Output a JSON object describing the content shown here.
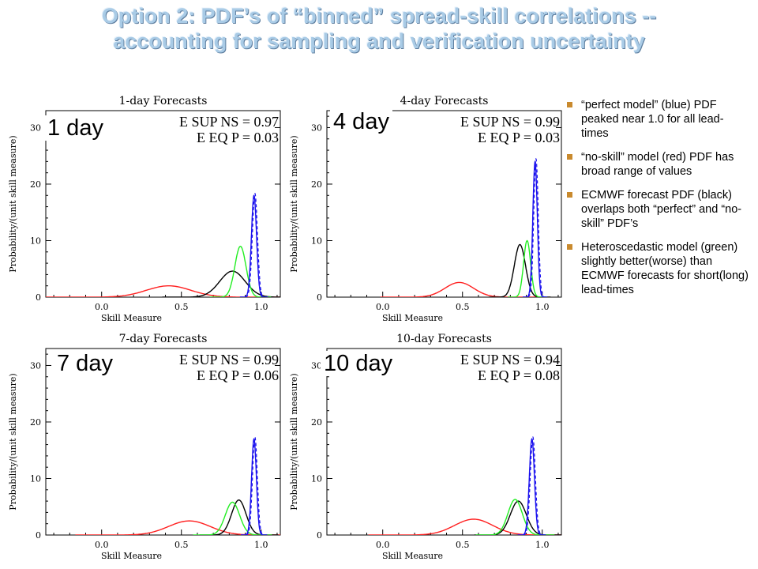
{
  "title": {
    "line1": "Option 2: PDF’s of “binned” spread-skill correlations --",
    "line2": "accounting for sampling and verification uncertainty"
  },
  "bullets": [
    "“perfect model” (blue) PDF peaked near 1.0 for all lead-times",
    "“no-skill” model (red) PDF has broad range of values",
    "ECMWF forecast PDF (black) overlaps both “perfect” and “no-skill” PDF’s",
    "Heteroscedastic model (green) slightly better(worse) than ECMWF forecasts for short(long) lead-times"
  ],
  "series_colors": {
    "red": "#ff2020",
    "black": "#000000",
    "green": "#22ee22",
    "blue": "#1a10ee"
  },
  "chart_data": [
    {
      "type": "line",
      "title": "1-day Forecasts",
      "day_label": "1 day",
      "xlabel": "Skill Measure",
      "ylabel": "Probability/(unit skill measure)",
      "xlim": [
        -0.35,
        1.12
      ],
      "ylim": [
        0,
        33
      ],
      "xticks": [
        "0.0",
        "0.5",
        "1.0"
      ],
      "yticks": [
        "0",
        "10",
        "20",
        "30"
      ],
      "stat_lines": [
        "E SUP NS = 0.97",
        "E EQ P = 0.03"
      ],
      "curves": [
        {
          "color": "red",
          "peak_x": 0.42,
          "peak_y": 2.0,
          "width": 0.14
        },
        {
          "color": "black",
          "peak_x": 0.82,
          "peak_y": 4.6,
          "width": 0.08
        },
        {
          "color": "green",
          "peak_x": 0.87,
          "peak_y": 9.0,
          "width": 0.035
        },
        {
          "color": "blue",
          "peak_x": 0.955,
          "peak_y": 18.0,
          "width": 0.016
        }
      ]
    },
    {
      "type": "line",
      "title": "4-day Forecasts",
      "day_label": "4 day",
      "xlabel": "Skill Measure",
      "ylabel": "Probability/(unit skill measure)",
      "xlim": [
        -0.35,
        1.12
      ],
      "ylim": [
        0,
        33
      ],
      "xticks": [
        "0.0",
        "0.5",
        "1.0"
      ],
      "yticks": [
        "0",
        "10",
        "20",
        "30"
      ],
      "stat_lines": [
        "E SUP NS = 0.99",
        "E EQ P = 0.03"
      ],
      "curves": [
        {
          "color": "red",
          "peak_x": 0.48,
          "peak_y": 2.6,
          "width": 0.09
        },
        {
          "color": "black",
          "peak_x": 0.86,
          "peak_y": 9.3,
          "width": 0.035
        },
        {
          "color": "green",
          "peak_x": 0.905,
          "peak_y": 10.0,
          "width": 0.022
        },
        {
          "color": "blue",
          "peak_x": 0.955,
          "peak_y": 24.0,
          "width": 0.014
        }
      ]
    },
    {
      "type": "line",
      "title": "7-day Forecasts",
      "day_label": "7 day",
      "xlabel": "Skill Measure",
      "ylabel": "Probability/(unit skill measure)",
      "xlim": [
        -0.35,
        1.12
      ],
      "ylim": [
        0,
        33
      ],
      "xticks": [
        "0.0",
        "0.5",
        "1.0"
      ],
      "yticks": [
        "0",
        "10",
        "20",
        "30"
      ],
      "stat_lines": [
        "E SUP NS = 0.99",
        "E EQ P = 0.06"
      ],
      "curves": [
        {
          "color": "red",
          "peak_x": 0.55,
          "peak_y": 2.5,
          "width": 0.13
        },
        {
          "color": "black",
          "peak_x": 0.86,
          "peak_y": 6.2,
          "width": 0.045
        },
        {
          "color": "green",
          "peak_x": 0.82,
          "peak_y": 5.8,
          "width": 0.045
        },
        {
          "color": "blue",
          "peak_x": 0.955,
          "peak_y": 17.0,
          "width": 0.015
        }
      ]
    },
    {
      "type": "line",
      "title": "10-day Forecasts",
      "day_label": "10 day",
      "xlabel": "Skill Measure",
      "ylabel": "Probability/(unit skill measure)",
      "xlim": [
        -0.35,
        1.12
      ],
      "ylim": [
        0,
        33
      ],
      "xticks": [
        "0.0",
        "0.5",
        "1.0"
      ],
      "yticks": [
        "0",
        "10",
        "20",
        "30"
      ],
      "stat_lines": [
        "E SUP NS = 0.94",
        "E EQ P = 0.08"
      ],
      "curves": [
        {
          "color": "red",
          "peak_x": 0.57,
          "peak_y": 2.8,
          "width": 0.12
        },
        {
          "color": "black",
          "peak_x": 0.85,
          "peak_y": 6.0,
          "width": 0.05
        },
        {
          "color": "green",
          "peak_x": 0.83,
          "peak_y": 6.3,
          "width": 0.045
        },
        {
          "color": "blue",
          "peak_x": 0.935,
          "peak_y": 17.0,
          "width": 0.016
        }
      ]
    }
  ]
}
